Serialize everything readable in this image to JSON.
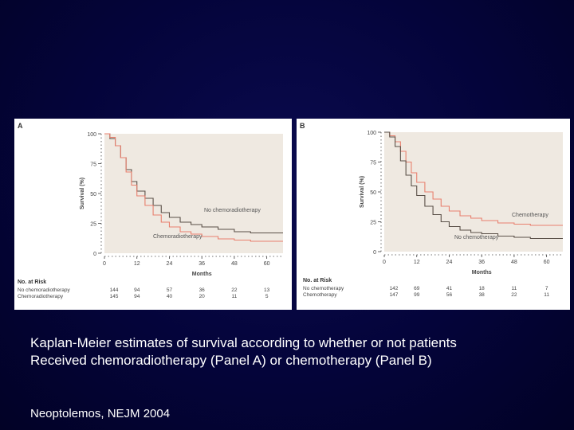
{
  "caption": {
    "line1": "Kaplan-Meier estimates of survival according to whether or not patients",
    "line2": "Received chemoradiotherapy (Panel A) or chemotherapy (Panel B)"
  },
  "citation": "Neoptolemos, NEJM 2004",
  "colors": {
    "accent_line": "#e8806e",
    "dark_line": "#5a5048",
    "plot_bg": "#efe9e1",
    "panel_bg": "#ffffff",
    "slide_bg": "#04043a",
    "text": "#ffffff"
  },
  "chart_data": [
    {
      "type": "line",
      "panel_label": "A",
      "xlabel": "Months",
      "ylabel": "Survival (%)",
      "xlim": [
        0,
        66
      ],
      "ylim": [
        0,
        100
      ],
      "x_ticks": [
        0,
        12,
        24,
        36,
        48,
        60
      ],
      "y_ticks": [
        0,
        25,
        50,
        75,
        100
      ],
      "series": [
        {
          "name": "No chemoradiotherapy",
          "color": "#5a5048",
          "x": [
            0,
            2,
            4,
            6,
            8,
            10,
            12,
            15,
            18,
            21,
            24,
            28,
            32,
            36,
            42,
            48,
            54,
            60,
            66
          ],
          "y": [
            100,
            96,
            90,
            80,
            70,
            60,
            52,
            46,
            40,
            34,
            30,
            26,
            24,
            22,
            20,
            18,
            17,
            17,
            17
          ]
        },
        {
          "name": "Chemoradiotherapy",
          "color": "#e8806e",
          "x": [
            0,
            2,
            4,
            6,
            8,
            10,
            12,
            15,
            18,
            21,
            24,
            28,
            32,
            36,
            42,
            48,
            54,
            60,
            66
          ],
          "y": [
            100,
            97,
            90,
            80,
            68,
            57,
            48,
            40,
            32,
            26,
            22,
            18,
            16,
            14,
            12,
            11,
            10,
            10,
            10
          ]
        }
      ],
      "series_labels": [
        "No chemoradiotherapy",
        "Chemoradiotherapy"
      ],
      "risk_table": {
        "title": "No. at Risk",
        "rows": [
          {
            "label": "No chemoradiotherapy",
            "values": [
              "144",
              "94",
              "57",
              "36",
              "22",
              "13"
            ]
          },
          {
            "label": "Chemoradiotherapy",
            "values": [
              "145",
              "94",
              "40",
              "20",
              "11",
              "5"
            ]
          }
        ]
      }
    },
    {
      "type": "line",
      "panel_label": "B",
      "xlabel": "Months",
      "ylabel": "Survival (%)",
      "xlim": [
        0,
        66
      ],
      "ylim": [
        0,
        100
      ],
      "x_ticks": [
        0,
        12,
        24,
        36,
        48,
        60
      ],
      "y_ticks": [
        0,
        25,
        50,
        75,
        100
      ],
      "series": [
        {
          "name": "Chemotherapy",
          "color": "#e8806e",
          "x": [
            0,
            2,
            4,
            6,
            8,
            10,
            12,
            15,
            18,
            21,
            24,
            28,
            32,
            36,
            42,
            48,
            54,
            60,
            66
          ],
          "y": [
            100,
            97,
            92,
            84,
            75,
            66,
            58,
            50,
            44,
            38,
            34,
            30,
            28,
            26,
            24,
            23,
            22,
            22,
            22
          ]
        },
        {
          "name": "No chemotherapy",
          "color": "#5a5048",
          "x": [
            0,
            2,
            4,
            6,
            8,
            10,
            12,
            15,
            18,
            21,
            24,
            28,
            32,
            36,
            42,
            48,
            54,
            60,
            66
          ],
          "y": [
            100,
            96,
            88,
            76,
            64,
            55,
            47,
            38,
            31,
            25,
            21,
            18,
            16,
            15,
            13,
            12,
            11,
            11,
            11
          ]
        }
      ],
      "series_labels": [
        "Chemotherapy",
        "No chemotherapy"
      ],
      "risk_table": {
        "title": "No. at Risk",
        "rows": [
          {
            "label": "No chemotherapy",
            "values": [
              "142",
              "69",
              "41",
              "18",
              "11",
              "7"
            ]
          },
          {
            "label": "Chemotherapy",
            "values": [
              "147",
              "99",
              "56",
              "38",
              "22",
              "11"
            ]
          }
        ]
      }
    }
  ]
}
